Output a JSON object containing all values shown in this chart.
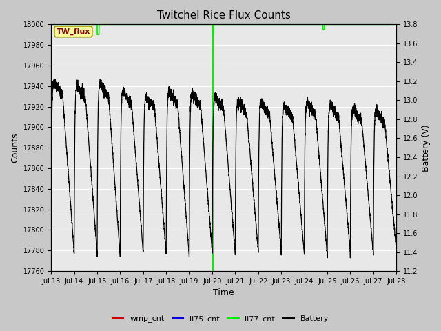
{
  "title": "Twitchel Rice Flux Counts",
  "xlabel": "Time",
  "ylabel_left": "Counts",
  "ylabel_right": "Battery (V)",
  "annotation_box": "TW_flux",
  "x_tick_labels": [
    "Jul 13",
    "Jul 14",
    "Jul 15",
    "Jul 16",
    "Jul 17",
    "Jul 18",
    "Jul 19",
    "Jul 20",
    "Jul 21",
    "Jul 22",
    "Jul 23",
    "Jul 24",
    "Jul 25",
    "Jul 26",
    "Jul 27",
    "Jul 28"
  ],
  "ylim_left": [
    17760,
    18000
  ],
  "ylim_right": [
    11.2,
    13.8
  ],
  "fig_bg_color": "#c8c8c8",
  "plot_bg_color": "#e8e8e8",
  "li75_cnt_color": "#0000dd",
  "wmp_cnt_color": "#cc0000",
  "li77_cnt_color": "#00ee00",
  "battery_color": "#000000",
  "n_days": 15,
  "vline_day": 7,
  "left_yticks": [
    17760,
    17780,
    17800,
    17820,
    17840,
    17860,
    17880,
    17900,
    17920,
    17940,
    17960,
    17980,
    18000
  ],
  "right_yticks": [
    11.2,
    11.4,
    11.6,
    11.8,
    12.0,
    12.2,
    12.4,
    12.6,
    12.8,
    13.0,
    13.2,
    13.4,
    13.6,
    13.8
  ]
}
